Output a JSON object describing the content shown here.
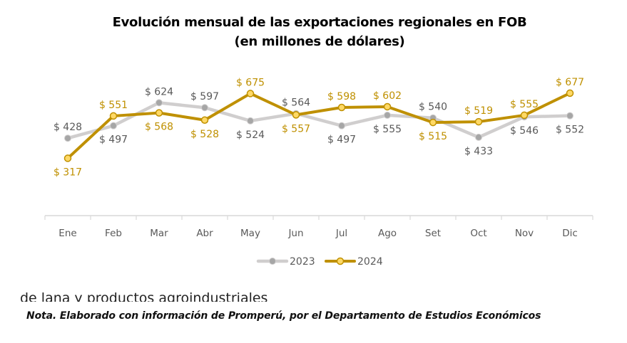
{
  "chart_data": {
    "type": "line",
    "title": "Evolución mensual de las exportaciones regionales en FOB",
    "subtitle": "(en millones de dólares)",
    "xlabel": "",
    "ylabel": "",
    "categories": [
      "Ene",
      "Feb",
      "Mar",
      "Abr",
      "May",
      "Jun",
      "Jul",
      "Ago",
      "Set",
      "Oct",
      "Nov",
      "Dic"
    ],
    "series": [
      {
        "name": "2023",
        "color": "#d0cece",
        "marker_color": "#a6a6a6",
        "label_color": "#595959",
        "values": [
          428,
          497,
          624,
          597,
          524,
          564,
          497,
          555,
          540,
          433,
          546,
          552
        ],
        "labels": [
          "$ 428",
          "$ 497",
          "$ 624",
          "$ 597",
          "$ 524",
          "$ 564",
          "$ 497",
          "$ 555",
          "$ 540",
          "$ 433",
          "$ 546",
          "$ 552"
        ],
        "label_positions": [
          "above",
          "below",
          "above",
          "above",
          "below",
          "above",
          "below",
          "below",
          "above",
          "below",
          "below",
          "below"
        ]
      },
      {
        "name": "2024",
        "color": "#bf9000",
        "marker_color": "#ffd966",
        "label_color": "#bf9000",
        "values": [
          317,
          551,
          568,
          528,
          675,
          557,
          598,
          602,
          515,
          519,
          555,
          677
        ],
        "labels": [
          "$ 317",
          "$ 551",
          "$ 568",
          "$ 528",
          "$ 675",
          "$ 557",
          "$ 598",
          "$ 602",
          "$ 515",
          "$ 519",
          "$ 555",
          "$ 677"
        ],
        "label_positions": [
          "below",
          "above",
          "below",
          "below",
          "above",
          "below",
          "above",
          "above",
          "below",
          "above",
          "above",
          "above"
        ]
      }
    ],
    "ylim": [
      0,
      700
    ],
    "grid": false,
    "y_axis_visible": false,
    "legend": "bottom-center"
  },
  "footer": {
    "cut_text": "de lana y productos agroindustriales",
    "note": "Nota. Elaborado con información de Promperú, por el Departamento de Estudios Económicos"
  }
}
